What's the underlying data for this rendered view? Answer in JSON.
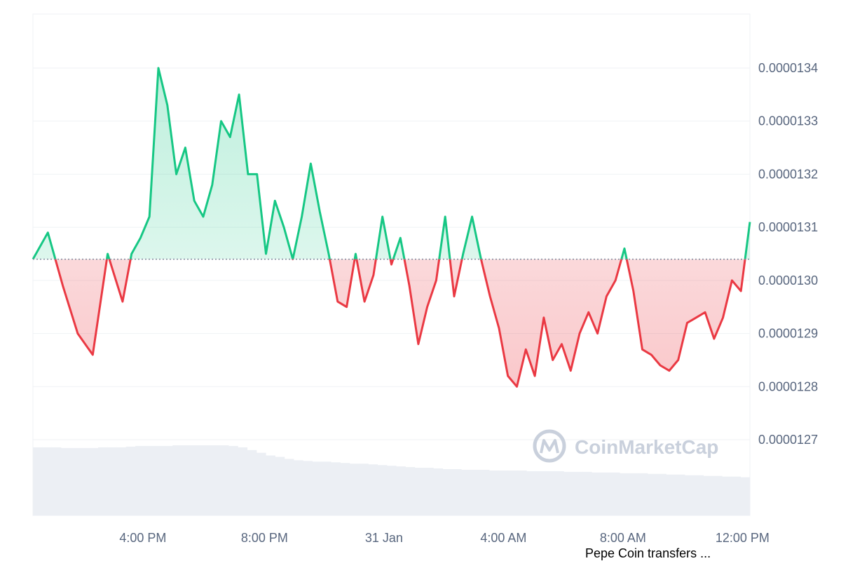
{
  "chart_data": {
    "type": "area",
    "title": "",
    "xlabel": "",
    "ylabel": "",
    "baseline": 1.304e-05,
    "ylim": [
      1.264e-05,
      1.35e-05
    ],
    "y_ticks": [
      1.34e-05,
      1.33e-05,
      1.32e-05,
      1.31e-05,
      1.3e-05,
      1.29e-05,
      1.28e-05,
      1.27e-05
    ],
    "y_tick_labels": [
      "0.0000134",
      "0.0000133",
      "0.0000132",
      "0.0000131",
      "0.0000130",
      "0.0000129",
      "0.0000128",
      "0.0000127"
    ],
    "x_ticks": [
      3.68,
      7.75,
      11.75,
      15.75,
      19.75,
      23.75
    ],
    "x_tick_labels": [
      "4:00 PM",
      "8:00 PM",
      "31 Jan",
      "4:00 AM",
      "8:00 AM",
      "12:00 PM"
    ],
    "xlim": [
      0,
      24
    ],
    "series": [
      {
        "x": [
          0,
          0.5,
          1,
          1.5,
          2,
          2.5,
          3,
          3.3,
          3.6,
          3.9,
          4.2,
          4.5,
          4.8,
          5.1,
          5.4,
          5.7,
          6,
          6.3,
          6.6,
          6.9,
          7.2,
          7.5,
          7.8,
          8.1,
          8.4,
          8.7,
          9,
          9.3,
          9.6,
          9.9,
          10.2,
          10.5,
          10.8,
          11.1,
          11.4,
          11.7,
          12,
          12.3,
          12.6,
          12.9,
          13.2,
          13.5,
          13.8,
          14.1,
          14.4,
          14.7,
          15,
          15.3,
          15.6,
          15.9,
          16.2,
          16.5,
          16.8,
          17.1,
          17.4,
          17.7,
          18,
          18.3,
          18.6,
          18.9,
          19.2,
          19.5,
          19.8,
          20.1,
          20.4,
          20.7,
          21,
          21.3,
          21.6,
          21.9,
          22.2,
          22.5,
          22.8,
          23.1,
          23.4,
          23.7,
          24
        ],
        "y": [
          1.304e-05,
          1.309e-05,
          1.299e-05,
          1.29e-05,
          1.286e-05,
          1.305e-05,
          1.296e-05,
          1.305e-05,
          1.308e-05,
          1.312e-05,
          1.34e-05,
          1.333e-05,
          1.32e-05,
          1.325e-05,
          1.315e-05,
          1.312e-05,
          1.318e-05,
          1.33e-05,
          1.327e-05,
          1.335e-05,
          1.32e-05,
          1.32e-05,
          1.305e-05,
          1.315e-05,
          1.31e-05,
          1.304e-05,
          1.312e-05,
          1.322e-05,
          1.313e-05,
          1.305e-05,
          1.296e-05,
          1.295e-05,
          1.305e-05,
          1.296e-05,
          1.301e-05,
          1.312e-05,
          1.303e-05,
          1.308e-05,
          1.299e-05,
          1.288e-05,
          1.295e-05,
          1.3e-05,
          1.312e-05,
          1.297e-05,
          1.305e-05,
          1.312e-05,
          1.304e-05,
          1.297e-05,
          1.291e-05,
          1.282e-05,
          1.28e-05,
          1.287e-05,
          1.282e-05,
          1.293e-05,
          1.285e-05,
          1.288e-05,
          1.283e-05,
          1.29e-05,
          1.294e-05,
          1.29e-05,
          1.297e-05,
          1.3e-05,
          1.306e-05,
          1.298e-05,
          1.287e-05,
          1.286e-05,
          1.284e-05,
          1.283e-05,
          1.285e-05,
          1.292e-05,
          1.293e-05,
          1.294e-05,
          1.289e-05,
          1.293e-05,
          1.3e-05,
          1.298e-05,
          1.311e-05
        ]
      }
    ],
    "volume": [
      100,
      100,
      100,
      99,
      99,
      99,
      99,
      100,
      100,
      100,
      101,
      102,
      102,
      102,
      102,
      103,
      103,
      103,
      103,
      103,
      103,
      102,
      100,
      96,
      92,
      88,
      86,
      83,
      81,
      80,
      79,
      79,
      78,
      77,
      76,
      76,
      75,
      74,
      73,
      72,
      71,
      70,
      70,
      69,
      68,
      68,
      67,
      67,
      67,
      66,
      66,
      66,
      66,
      65,
      65,
      65,
      65,
      64,
      64,
      64,
      63,
      63,
      63,
      62,
      62,
      62,
      61,
      61,
      60,
      60,
      59,
      59,
      58,
      58,
      57,
      57,
      56
    ],
    "colors": {
      "up": "#16c784",
      "down": "#ea3943",
      "baseline": "#808a9d",
      "grid": "#eff2f5",
      "volume": "#eceff4"
    }
  },
  "watermark": {
    "text": "CoinMarketCap"
  },
  "caption": {
    "text": "Pepe Coin transfers ..."
  }
}
